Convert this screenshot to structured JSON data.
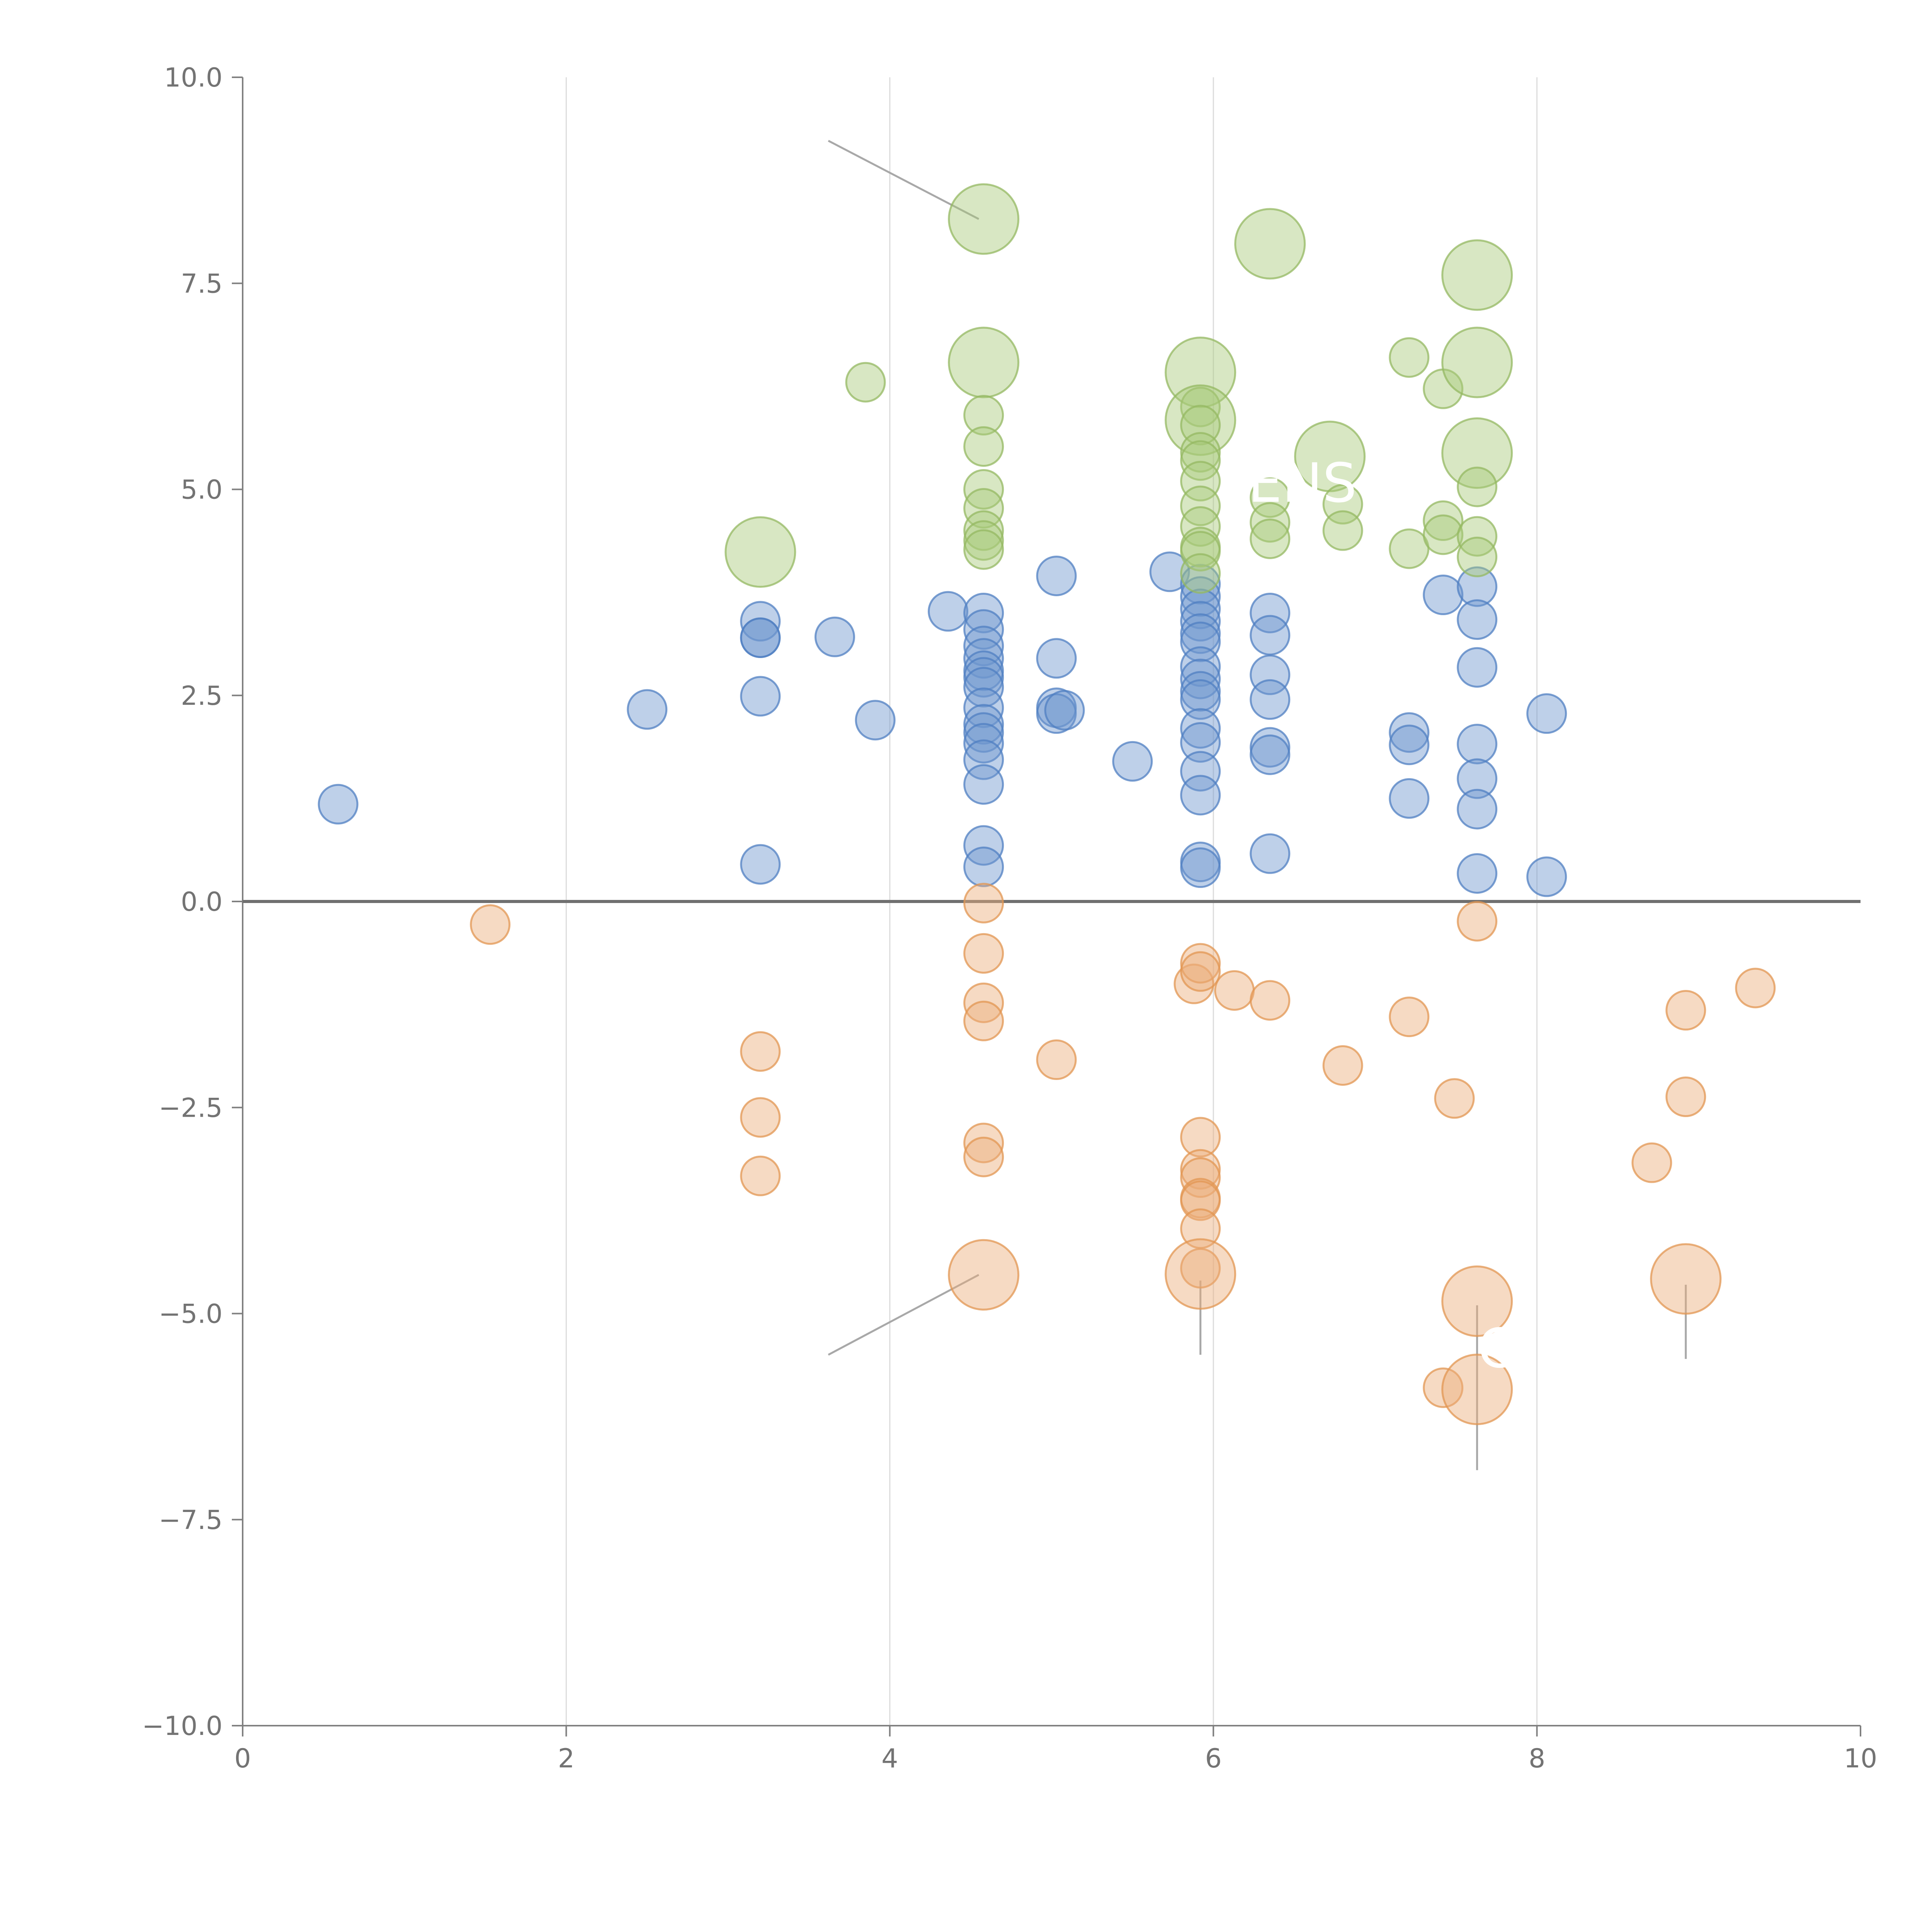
{
  "chart_data": {
    "type": "scatter",
    "title": "",
    "xlabel": "",
    "ylabel": "",
    "xlim": [
      0,
      10
    ],
    "ylim": [
      -10,
      10
    ],
    "grid": "vertical",
    "legend": "none",
    "x_ticks": [
      "0",
      "2",
      "4",
      "6",
      "8",
      "10"
    ],
    "y_ticks": [
      "10.0",
      "7.5",
      "5.0",
      "2.5",
      "0.0",
      "−2.5",
      "−5.0",
      "−7.5",
      "−10.0"
    ],
    "colors": {
      "blue": "#6f96cf",
      "green": "#a9c97a",
      "orange": "#ecae79"
    },
    "series": [
      {
        "name": "blue",
        "color_key": "blue",
        "points": [
          [
            0.59,
            1.18,
            10
          ],
          [
            2.5,
            2.33,
            10
          ],
          [
            3.2,
            3.4,
            10
          ],
          [
            3.2,
            3.2,
            10
          ],
          [
            3.2,
            3.2,
            10
          ],
          [
            3.2,
            2.49,
            10
          ],
          [
            3.2,
            0.45,
            10
          ],
          [
            3.66,
            3.21,
            10
          ],
          [
            3.91,
            2.2,
            10
          ],
          [
            4.36,
            3.52,
            10
          ],
          [
            4.58,
            3.5,
            10
          ],
          [
            4.58,
            3.3,
            10
          ],
          [
            4.58,
            3.1,
            10
          ],
          [
            4.58,
            2.95,
            10
          ],
          [
            4.58,
            2.8,
            10
          ],
          [
            4.58,
            2.72,
            10
          ],
          [
            4.58,
            2.6,
            10
          ],
          [
            4.58,
            2.35,
            10
          ],
          [
            4.58,
            2.15,
            10
          ],
          [
            4.58,
            2.05,
            10
          ],
          [
            4.58,
            1.92,
            10
          ],
          [
            4.58,
            1.72,
            10
          ],
          [
            4.58,
            1.42,
            10
          ],
          [
            4.58,
            0.68,
            10
          ],
          [
            4.58,
            0.42,
            10
          ],
          [
            5.03,
            3.95,
            10
          ],
          [
            5.03,
            2.95,
            10
          ],
          [
            5.03,
            2.35,
            10
          ],
          [
            5.03,
            2.28,
            10
          ],
          [
            5.08,
            2.32,
            10
          ],
          [
            5.5,
            1.7,
            10
          ],
          [
            5.73,
            4.0,
            10
          ],
          [
            5.92,
            3.85,
            10
          ],
          [
            5.92,
            3.7,
            10
          ],
          [
            5.92,
            3.55,
            10
          ],
          [
            5.92,
            3.4,
            10
          ],
          [
            5.92,
            3.25,
            10
          ],
          [
            5.92,
            3.15,
            10
          ],
          [
            5.92,
            2.85,
            10
          ],
          [
            5.92,
            2.7,
            10
          ],
          [
            5.92,
            2.55,
            10
          ],
          [
            5.92,
            2.45,
            10
          ],
          [
            5.92,
            2.1,
            10
          ],
          [
            5.92,
            1.93,
            10
          ],
          [
            5.92,
            1.58,
            10
          ],
          [
            5.92,
            1.29,
            10
          ],
          [
            5.92,
            0.48,
            10
          ],
          [
            5.92,
            0.41,
            10
          ],
          [
            6.35,
            3.5,
            10
          ],
          [
            6.35,
            3.23,
            10
          ],
          [
            6.35,
            2.75,
            10
          ],
          [
            6.35,
            2.45,
            10
          ],
          [
            6.35,
            1.87,
            10
          ],
          [
            6.35,
            1.78,
            10
          ],
          [
            6.35,
            0.58,
            10
          ],
          [
            7.21,
            2.05,
            10
          ],
          [
            7.21,
            1.9,
            10
          ],
          [
            7.21,
            1.25,
            10
          ],
          [
            7.42,
            3.72,
            10
          ],
          [
            7.63,
            3.82,
            10
          ],
          [
            7.63,
            3.42,
            10
          ],
          [
            7.63,
            2.84,
            10
          ],
          [
            7.63,
            1.91,
            10
          ],
          [
            7.63,
            1.49,
            10
          ],
          [
            7.63,
            1.12,
            10
          ],
          [
            7.63,
            0.34,
            10
          ],
          [
            8.06,
            2.28,
            10
          ],
          [
            8.06,
            0.3,
            10
          ]
        ]
      },
      {
        "name": "green",
        "color_key": "green",
        "points": [
          [
            3.2,
            4.24,
            18
          ],
          [
            3.85,
            6.3,
            10
          ],
          [
            4.58,
            8.28,
            18
          ],
          [
            4.58,
            6.54,
            18
          ],
          [
            4.58,
            5.9,
            10
          ],
          [
            4.58,
            5.52,
            10
          ],
          [
            4.58,
            5.0,
            10
          ],
          [
            4.58,
            4.77,
            10
          ],
          [
            4.58,
            4.5,
            10
          ],
          [
            4.58,
            4.38,
            10
          ],
          [
            4.58,
            4.27,
            10
          ],
          [
            5.92,
            6.42,
            18
          ],
          [
            5.92,
            6.0,
            10
          ],
          [
            5.92,
            5.84,
            18
          ],
          [
            5.92,
            5.78,
            10
          ],
          [
            5.92,
            5.45,
            10
          ],
          [
            5.92,
            5.35,
            10
          ],
          [
            5.92,
            5.1,
            10
          ],
          [
            5.92,
            4.8,
            10
          ],
          [
            5.92,
            4.55,
            10
          ],
          [
            5.92,
            4.3,
            10
          ],
          [
            5.92,
            4.25,
            10
          ],
          [
            5.92,
            3.98,
            10
          ],
          [
            6.35,
            7.98,
            18
          ],
          [
            6.35,
            4.9,
            10
          ],
          [
            6.35,
            4.6,
            10
          ],
          [
            6.35,
            4.4,
            10
          ],
          [
            6.72,
            5.4,
            18
          ],
          [
            6.8,
            4.82,
            10
          ],
          [
            6.8,
            4.5,
            10
          ],
          [
            7.21,
            6.6,
            10
          ],
          [
            7.21,
            4.28,
            10
          ],
          [
            7.42,
            6.22,
            10
          ],
          [
            7.42,
            4.62,
            10
          ],
          [
            7.42,
            4.45,
            10
          ],
          [
            7.63,
            7.6,
            18
          ],
          [
            7.63,
            6.54,
            18
          ],
          [
            7.63,
            5.44,
            18
          ],
          [
            7.63,
            5.03,
            10
          ],
          [
            7.63,
            4.43,
            10
          ],
          [
            7.63,
            4.18,
            10
          ]
        ]
      },
      {
        "name": "orange",
        "color_key": "orange",
        "points": [
          [
            1.53,
            -0.28,
            10
          ],
          [
            3.2,
            -1.82,
            10
          ],
          [
            3.2,
            -2.62,
            10
          ],
          [
            3.2,
            -3.33,
            10
          ],
          [
            4.58,
            -0.02,
            10
          ],
          [
            4.58,
            -0.63,
            10
          ],
          [
            4.58,
            -1.23,
            10
          ],
          [
            4.58,
            -1.45,
            10
          ],
          [
            4.58,
            -2.93,
            10
          ],
          [
            4.58,
            -3.1,
            10
          ],
          [
            4.58,
            -4.53,
            18
          ],
          [
            5.03,
            -1.92,
            10
          ],
          [
            5.88,
            -1.0,
            10
          ],
          [
            5.92,
            -0.75,
            10
          ],
          [
            5.92,
            -0.85,
            10
          ],
          [
            6.13,
            -1.08,
            10
          ],
          [
            6.35,
            -1.2,
            10
          ],
          [
            5.92,
            -2.86,
            10
          ],
          [
            5.92,
            -3.25,
            10
          ],
          [
            5.92,
            -3.35,
            10
          ],
          [
            5.92,
            -3.6,
            10
          ],
          [
            5.92,
            -3.63,
            10
          ],
          [
            5.92,
            -3.97,
            10
          ],
          [
            5.92,
            -4.45,
            10
          ],
          [
            5.92,
            -4.52,
            18
          ],
          [
            6.8,
            -1.99,
            10
          ],
          [
            7.21,
            -1.4,
            10
          ],
          [
            7.49,
            -2.39,
            10
          ],
          [
            7.42,
            -5.9,
            10
          ],
          [
            7.63,
            -0.24,
            10
          ],
          [
            7.63,
            -4.85,
            18
          ],
          [
            7.63,
            -5.92,
            18
          ],
          [
            8.71,
            -3.17,
            10
          ],
          [
            8.92,
            -1.32,
            10
          ],
          [
            8.92,
            -2.37,
            10
          ],
          [
            8.92,
            -4.58,
            18
          ],
          [
            9.35,
            -1.05,
            10
          ]
        ]
      }
    ],
    "annotations": [
      {
        "text": "ENS",
        "x": 6.55,
        "y": 4.85
      },
      {
        "text": "C",
        "x": 7.75,
        "y": -5.65
      }
    ]
  }
}
